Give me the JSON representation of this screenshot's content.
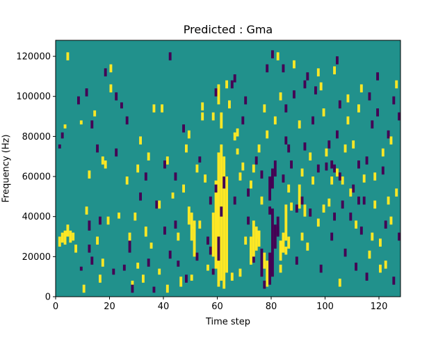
{
  "chart_data": {
    "type": "heatmap",
    "title": "Predicted : Gma",
    "xlabel": "Time step",
    "ylabel": "Frequency (Hz)",
    "xlim": [
      0,
      128
    ],
    "ylim": [
      0,
      128000
    ],
    "xticks": [
      0,
      20,
      40,
      60,
      80,
      100,
      120
    ],
    "yticks": [
      0,
      20000,
      40000,
      60000,
      80000,
      100000,
      120000
    ],
    "xtick_labels": [
      "0",
      "20",
      "40",
      "60",
      "80",
      "100",
      "120"
    ],
    "ytick_labels": [
      "0",
      "20000",
      "40000",
      "60000",
      "80000",
      "100000",
      "120000"
    ],
    "grid": false,
    "colormap": [
      "#440154",
      "#21918c",
      "#fde725"
    ],
    "background_value": 1,
    "dims": {
      "time_steps": 128,
      "freq_bins": 128,
      "bin_hz": 1000
    },
    "cells": [
      [
        1,
        25,
        30,
        2
      ],
      [
        2,
        27,
        32,
        2
      ],
      [
        3,
        26,
        33,
        2
      ],
      [
        4,
        30,
        36,
        2
      ],
      [
        5,
        27,
        33,
        2
      ],
      [
        6,
        28,
        32,
        2
      ],
      [
        7,
        22,
        26,
        2
      ],
      [
        1,
        74,
        76,
        0
      ],
      [
        2,
        79,
        82,
        0
      ],
      [
        3,
        84,
        86,
        2
      ],
      [
        9,
        13,
        15,
        0
      ],
      [
        9,
        86,
        88,
        2
      ],
      [
        10,
        2,
        6,
        2
      ],
      [
        11,
        41,
        45,
        2
      ],
      [
        11,
        100,
        104,
        0
      ],
      [
        12,
        59,
        63,
        2
      ],
      [
        12,
        22,
        26,
        0
      ],
      [
        12,
        33,
        38,
        0
      ],
      [
        13,
        16,
        20,
        0
      ],
      [
        14,
        90,
        93,
        2
      ],
      [
        15,
        26,
        30,
        2
      ],
      [
        16,
        7,
        11,
        2
      ],
      [
        16,
        36,
        40,
        0
      ],
      [
        17,
        15,
        19,
        2
      ],
      [
        18,
        64,
        68,
        2
      ],
      [
        18,
        110,
        114,
        0
      ],
      [
        19,
        36,
        40,
        2
      ],
      [
        20,
        102,
        106,
        2
      ],
      [
        21,
        11,
        14,
        0
      ],
      [
        22,
        98,
        102,
        0
      ],
      [
        23,
        39,
        42,
        2
      ],
      [
        24,
        94,
        97,
        0
      ],
      [
        25,
        13,
        16,
        0
      ],
      [
        26,
        56,
        60,
        2
      ],
      [
        27,
        22,
        28,
        0
      ],
      [
        28,
        5,
        8,
        2
      ],
      [
        29,
        38,
        42,
        2
      ],
      [
        30,
        14,
        17,
        2
      ],
      [
        31,
        48,
        52,
        0
      ],
      [
        32,
        7,
        11,
        2
      ],
      [
        33,
        30,
        35,
        2
      ],
      [
        34,
        15,
        19,
        0
      ],
      [
        35,
        24,
        27,
        2
      ],
      [
        36,
        2,
        5,
        0
      ],
      [
        37,
        44,
        48,
        0
      ],
      [
        38,
        11,
        14,
        2
      ],
      [
        39,
        92,
        96,
        2
      ],
      [
        40,
        31,
        35,
        0
      ],
      [
        41,
        66,
        70,
        2
      ],
      [
        42,
        19,
        23,
        0
      ],
      [
        43,
        49,
        52,
        2
      ],
      [
        44,
        34,
        38,
        0
      ],
      [
        45,
        15,
        18,
        0
      ],
      [
        46,
        5,
        10,
        2
      ],
      [
        47,
        52,
        56,
        2
      ],
      [
        48,
        7,
        11,
        0
      ],
      [
        49,
        79,
        83,
        2
      ],
      [
        50,
        8,
        11,
        2
      ],
      [
        51,
        34,
        38,
        2
      ],
      [
        52,
        18,
        22,
        0
      ],
      [
        53,
        67,
        70,
        0
      ],
      [
        54,
        93,
        97,
        2
      ],
      [
        55,
        57,
        61,
        2
      ],
      [
        56,
        13,
        16,
        2
      ],
      [
        57,
        21,
        25,
        0
      ],
      [
        58,
        11,
        14,
        0
      ],
      [
        59,
        100,
        104,
        0
      ],
      [
        63,
        104,
        108,
        2
      ],
      [
        64,
        94,
        98,
        2
      ],
      [
        65,
        8,
        12,
        2
      ],
      [
        66,
        46,
        50,
        0
      ],
      [
        67,
        71,
        74,
        2
      ],
      [
        68,
        10,
        14,
        2
      ],
      [
        69,
        63,
        67,
        2
      ],
      [
        70,
        96,
        100,
        0
      ],
      [
        71,
        36,
        40,
        0
      ],
      [
        72,
        54,
        58,
        2
      ],
      [
        73,
        17,
        21,
        0
      ],
      [
        74,
        66,
        70,
        0
      ],
      [
        75,
        29,
        33,
        2
      ],
      [
        76,
        59,
        63,
        0
      ],
      [
        77,
        92,
        96,
        2
      ],
      [
        78,
        79,
        83,
        2
      ],
      [
        79,
        41,
        45,
        0
      ],
      [
        80,
        119,
        123,
        0
      ],
      [
        81,
        86,
        90,
        2
      ],
      [
        82,
        31,
        35,
        0
      ],
      [
        83,
        12,
        16,
        2
      ],
      [
        84,
        57,
        61,
        0
      ],
      [
        85,
        21,
        25,
        2
      ],
      [
        86,
        72,
        76,
        0
      ],
      [
        87,
        43,
        47,
        2
      ],
      [
        88,
        99,
        103,
        0
      ],
      [
        89,
        16,
        20,
        0
      ],
      [
        90,
        84,
        88,
        2
      ],
      [
        91,
        60,
        64,
        2
      ],
      [
        92,
        73,
        77,
        0
      ],
      [
        93,
        23,
        27,
        2
      ],
      [
        94,
        40,
        44,
        0
      ],
      [
        95,
        56,
        60,
        2
      ],
      [
        96,
        101,
        105,
        0
      ],
      [
        97,
        35,
        39,
        2
      ],
      [
        98,
        12,
        16,
        0
      ],
      [
        99,
        90,
        94,
        2
      ],
      [
        100,
        63,
        67,
        0
      ],
      [
        101,
        45,
        49,
        2
      ],
      [
        102,
        28,
        32,
        0
      ],
      [
        103,
        111,
        115,
        2
      ],
      [
        104,
        79,
        83,
        0
      ],
      [
        105,
        5,
        9,
        2
      ],
      [
        106,
        56,
        60,
        2
      ],
      [
        107,
        20,
        24,
        0
      ],
      [
        108,
        97,
        101,
        2
      ],
      [
        109,
        38,
        42,
        0
      ],
      [
        110,
        74,
        78,
        2
      ],
      [
        111,
        13,
        17,
        0
      ],
      [
        112,
        92,
        96,
        2
      ],
      [
        113,
        31,
        35,
        0
      ],
      [
        114,
        57,
        61,
        2
      ],
      [
        115,
        66,
        70,
        0
      ],
      [
        116,
        19,
        23,
        2
      ],
      [
        117,
        84,
        88,
        0
      ],
      [
        118,
        44,
        48,
        2
      ],
      [
        119,
        108,
        112,
        0
      ],
      [
        120,
        25,
        29,
        2
      ],
      [
        121,
        61,
        65,
        0
      ],
      [
        122,
        14,
        18,
        2
      ],
      [
        123,
        79,
        83,
        0
      ],
      [
        124,
        36,
        40,
        2
      ],
      [
        125,
        96,
        100,
        0
      ],
      [
        126,
        50,
        54,
        2
      ],
      [
        127,
        28,
        32,
        0
      ],
      [
        60,
        5,
        72,
        2
      ],
      [
        61,
        8,
        76,
        2
      ],
      [
        62,
        4,
        70,
        2
      ],
      [
        63,
        12,
        60,
        2
      ],
      [
        59,
        14,
        58,
        2
      ],
      [
        58,
        20,
        42,
        2
      ],
      [
        49,
        36,
        45,
        2
      ],
      [
        50,
        28,
        42,
        2
      ],
      [
        51,
        20,
        35,
        2
      ],
      [
        60,
        18,
        30,
        0
      ],
      [
        61,
        40,
        45,
        0
      ],
      [
        62,
        54,
        60,
        0
      ],
      [
        72,
        16,
        30,
        2
      ],
      [
        73,
        20,
        38,
        2
      ],
      [
        74,
        23,
        35,
        2
      ],
      [
        75,
        25,
        33,
        2
      ],
      [
        76,
        10,
        24,
        0
      ],
      [
        77,
        14,
        22,
        2
      ],
      [
        78,
        5,
        18,
        2
      ],
      [
        79,
        6,
        22,
        0
      ],
      [
        80,
        10,
        44,
        0
      ],
      [
        81,
        24,
        36,
        0
      ],
      [
        82,
        30,
        40,
        0
      ],
      [
        83,
        18,
        28,
        2
      ],
      [
        84,
        22,
        32,
        2
      ],
      [
        85,
        28,
        46,
        2
      ],
      [
        86,
        24,
        30,
        2
      ],
      [
        79,
        48,
        60,
        0
      ],
      [
        80,
        54,
        64,
        0
      ],
      [
        81,
        60,
        68,
        0
      ],
      [
        90,
        44,
        56,
        2
      ],
      [
        91,
        46,
        50,
        0
      ],
      [
        92,
        40,
        46,
        2
      ],
      [
        110,
        52,
        56,
        0
      ],
      [
        111,
        34,
        38,
        2
      ],
      [
        112,
        46,
        50,
        0
      ],
      [
        60,
        96,
        106,
        2
      ],
      [
        61,
        84,
        92,
        2
      ],
      [
        66,
        107,
        111,
        0
      ],
      [
        67,
        80,
        84,
        2
      ],
      [
        84,
        112,
        116,
        0
      ],
      [
        85,
        92,
        96,
        0
      ],
      [
        88,
        114,
        118,
        2
      ],
      [
        92,
        104,
        108,
        0
      ],
      [
        97,
        110,
        114,
        2
      ],
      [
        104,
        116,
        120,
        0
      ],
      [
        98,
        103,
        107,
        2
      ],
      [
        4,
        118,
        122,
        2
      ],
      [
        8,
        96,
        100,
        0
      ],
      [
        13,
        84,
        88,
        0
      ],
      [
        15,
        72,
        76,
        0
      ],
      [
        17,
        66,
        70,
        2
      ],
      [
        20,
        112,
        116,
        2
      ],
      [
        22,
        70,
        74,
        0
      ],
      [
        26,
        86,
        90,
        0
      ],
      [
        27,
        28,
        32,
        2
      ],
      [
        28,
        2,
        6,
        0
      ],
      [
        30,
        62,
        66,
        2
      ],
      [
        31,
        76,
        80,
        2
      ],
      [
        33,
        58,
        62,
        0
      ],
      [
        34,
        68,
        72,
        2
      ],
      [
        36,
        92,
        96,
        2
      ],
      [
        38,
        44,
        48,
        2
      ],
      [
        40,
        64,
        68,
        0
      ],
      [
        41,
        2,
        6,
        2
      ],
      [
        42,
        118,
        122,
        0
      ],
      [
        44,
        58,
        62,
        0
      ],
      [
        45,
        28,
        32,
        2
      ],
      [
        47,
        82,
        86,
        0
      ],
      [
        48,
        72,
        76,
        2
      ],
      [
        52,
        62,
        66,
        2
      ],
      [
        53,
        34,
        38,
        2
      ],
      [
        54,
        88,
        92,
        2
      ],
      [
        56,
        26,
        30,
        0
      ],
      [
        57,
        46,
        50,
        0
      ],
      [
        58,
        88,
        92,
        2
      ],
      [
        59,
        52,
        56,
        0
      ],
      [
        65,
        104,
        108,
        0
      ],
      [
        66,
        78,
        82,
        2
      ],
      [
        68,
        58,
        62,
        2
      ],
      [
        69,
        86,
        90,
        0
      ],
      [
        70,
        26,
        30,
        2
      ],
      [
        71,
        50,
        54,
        0
      ],
      [
        73,
        62,
        66,
        2
      ],
      [
        75,
        72,
        76,
        2
      ],
      [
        76,
        46,
        50,
        2
      ],
      [
        77,
        4,
        8,
        0
      ],
      [
        78,
        112,
        116,
        0
      ],
      [
        82,
        118,
        122,
        2
      ],
      [
        83,
        98,
        102,
        2
      ],
      [
        85,
        76,
        80,
        0
      ],
      [
        86,
        52,
        56,
        2
      ],
      [
        87,
        64,
        68,
        0
      ],
      [
        89,
        42,
        46,
        0
      ],
      [
        91,
        28,
        32,
        2
      ],
      [
        93,
        108,
        112,
        0
      ],
      [
        94,
        68,
        72,
        2
      ],
      [
        95,
        86,
        90,
        0
      ],
      [
        97,
        62,
        66,
        0
      ],
      [
        99,
        42,
        46,
        2
      ],
      [
        100,
        70,
        74,
        2
      ],
      [
        102,
        56,
        60,
        2
      ],
      [
        103,
        38,
        42,
        0
      ],
      [
        105,
        94,
        98,
        0
      ],
      [
        106,
        44,
        48,
        0
      ],
      [
        107,
        72,
        76,
        2
      ],
      [
        108,
        86,
        90,
        2
      ],
      [
        109,
        50,
        54,
        2
      ],
      [
        112,
        64,
        68,
        0
      ],
      [
        113,
        102,
        106,
        2
      ],
      [
        114,
        46,
        50,
        0
      ],
      [
        115,
        8,
        12,
        0
      ],
      [
        116,
        98,
        102,
        0
      ],
      [
        117,
        28,
        32,
        2
      ],
      [
        118,
        58,
        62,
        2
      ],
      [
        119,
        90,
        94,
        0
      ],
      [
        120,
        12,
        16,
        2
      ],
      [
        121,
        70,
        74,
        2
      ],
      [
        122,
        34,
        38,
        0
      ],
      [
        123,
        46,
        50,
        2
      ],
      [
        124,
        76,
        80,
        2
      ],
      [
        125,
        6,
        10,
        0
      ],
      [
        126,
        104,
        108,
        2
      ],
      [
        127,
        88,
        92,
        0
      ],
      [
        101,
        74,
        78,
        0
      ],
      [
        102,
        64,
        68,
        0
      ],
      [
        103,
        62,
        66,
        0
      ],
      [
        104,
        60,
        64,
        2
      ],
      [
        105,
        58,
        62,
        0
      ]
    ]
  }
}
